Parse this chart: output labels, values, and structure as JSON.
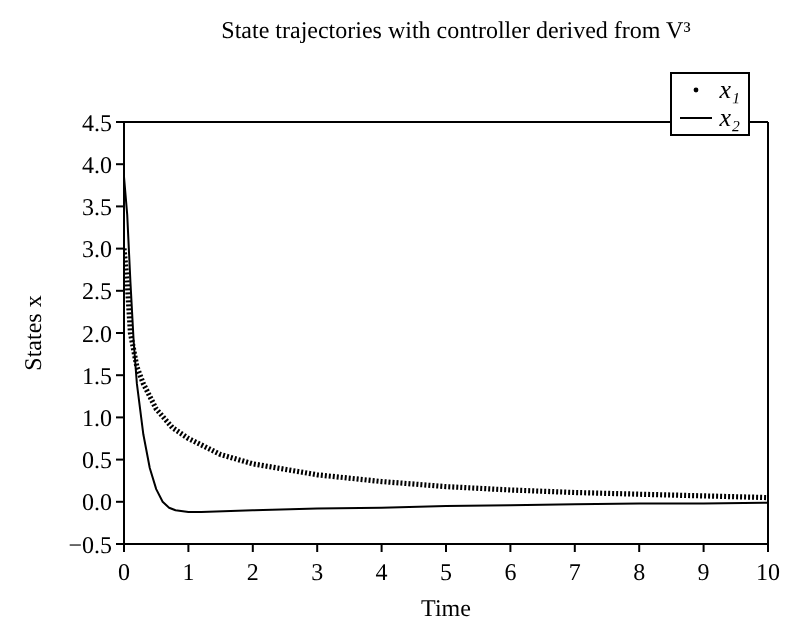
{
  "chart_data": {
    "type": "line",
    "title": "State trajectories with controller derived from V³",
    "xlabel": "Time",
    "ylabel": "States x",
    "xlim": [
      0,
      10
    ],
    "xticks": [
      0,
      1,
      2,
      3,
      4,
      5,
      6,
      7,
      8,
      9,
      10
    ],
    "ylim": [
      -0.5,
      4.5
    ],
    "yticks": [
      {
        "value": -0.5,
        "label": "−0.5"
      },
      {
        "value": 0,
        "label": "0.0"
      },
      {
        "value": 0.5,
        "label": "0.5"
      },
      {
        "value": 1,
        "label": "1.0"
      },
      {
        "value": 1.5,
        "label": "1.5"
      },
      {
        "value": 2,
        "label": "2.0"
      },
      {
        "value": 2.5,
        "label": "2.5"
      },
      {
        "value": 3,
        "label": "3.0"
      },
      {
        "value": 3.5,
        "label": "3.5"
      },
      {
        "value": 4,
        "label": "4.0"
      },
      {
        "value": 4.5,
        "label": "4.5"
      }
    ],
    "legend": "top right",
    "series": [
      {
        "name": "x₁",
        "color": "#000000",
        "line_style": "dotted",
        "x": [
          0,
          0.05,
          0.1,
          0.2,
          0.3,
          0.5,
          0.75,
          1,
          1.5,
          2,
          3,
          4,
          5,
          6,
          7,
          8,
          9,
          10
        ],
        "values": [
          3.0,
          2.6,
          2.0,
          1.6,
          1.4,
          1.1,
          0.88,
          0.75,
          0.56,
          0.45,
          0.32,
          0.24,
          0.18,
          0.14,
          0.11,
          0.09,
          0.07,
          0.05
        ]
      },
      {
        "name": "x₂",
        "color": "#000000",
        "line_style": "solid",
        "x": [
          0,
          0.05,
          0.1,
          0.15,
          0.2,
          0.3,
          0.4,
          0.5,
          0.6,
          0.7,
          0.8,
          1,
          1.2,
          2,
          3,
          4,
          5,
          6,
          7,
          8,
          9,
          10
        ],
        "values": [
          3.85,
          3.4,
          2.6,
          1.9,
          1.4,
          0.8,
          0.4,
          0.15,
          0.0,
          -0.07,
          -0.1,
          -0.12,
          -0.12,
          -0.1,
          -0.08,
          -0.07,
          -0.05,
          -0.04,
          -0.03,
          -0.02,
          -0.02,
          -0.01
        ]
      }
    ]
  }
}
